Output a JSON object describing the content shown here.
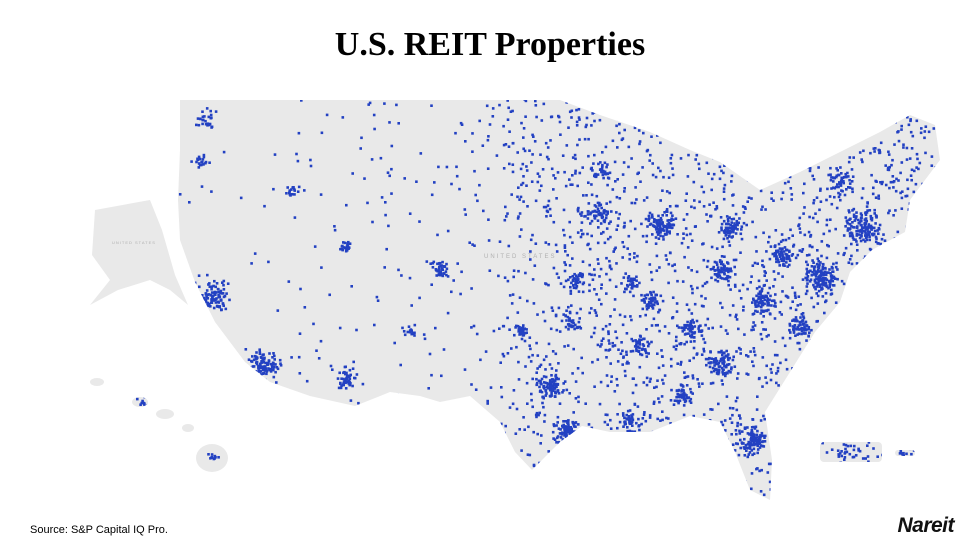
{
  "title": "U.S. REIT Properties",
  "map": {
    "labels": [
      "UNITED STATES",
      "UNITED STATES"
    ]
  },
  "footer": {
    "source": "Source: S&P Capital IQ Pro.",
    "logo": "Nareit"
  }
}
